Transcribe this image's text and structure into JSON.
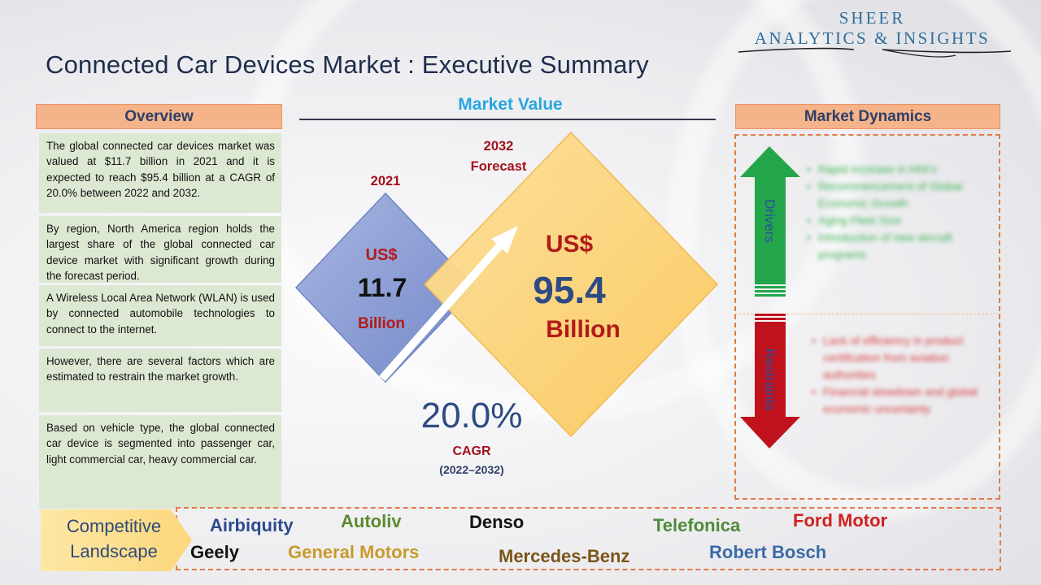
{
  "header": {
    "title": "Connected Car Devices Market : Executive Summary",
    "logo_line1": "SHEER",
    "logo_line2": "ANALYTICS & INSIGHTS"
  },
  "overview": {
    "title": "Overview",
    "paragraphs": [
      "The global connected car devices market was valued at $11.7 billion in 2021 and it is expected to reach $95.4 billion at a CAGR of 20.0% between 2022 and 2032.",
      "By region, North America region holds the largest share of the global connected car device market with significant growth during the forecast period.",
      "A Wireless Local Area Network (WLAN) is used by connected automobile technologies to connect to the internet.",
      "However, there are several factors which are estimated to restrain the market growth.",
      "Based on vehicle type, the global connected car device is segmented into passenger car, light commercial car, heavy commercial car."
    ]
  },
  "market_value": {
    "title": "Market Value",
    "start": {
      "year": "2021",
      "currency": "US$",
      "value": "11.7",
      "unit": "Billion"
    },
    "end": {
      "year_line1": "2032",
      "year_line2": "Forecast",
      "currency": "US$",
      "value": "95.4",
      "unit": "Billion"
    },
    "cagr": {
      "value": "20.0%",
      "label": "CAGR",
      "period": "(2022–2032)"
    }
  },
  "market_dynamics": {
    "title": "Market Dynamics",
    "drivers_label": "Drivers",
    "restraints_label": "Restraints",
    "drivers": [
      "Rapid increase in HNI's",
      "Recommencement of Global Economic Growth",
      "Aging Fleet Size",
      "Introduction of new aircraft programs"
    ],
    "restraints": [
      "Lack of efficiency in product certification from aviation authorities",
      "Financial slowdown and global economic uncertainty"
    ]
  },
  "competitive_landscape": {
    "label_line1": "Competitive",
    "label_line2": "Landscape",
    "companies": [
      {
        "name": "Airbiquity",
        "color": "#2e4a8c"
      },
      {
        "name": "Autoliv",
        "color": "#5a8a2e"
      },
      {
        "name": "Denso",
        "color": "#111111"
      },
      {
        "name": "Telefonica",
        "color": "#4f8a3a"
      },
      {
        "name": "Ford Motor",
        "color": "#d0201f"
      },
      {
        "name": "Geely",
        "color": "#111111"
      },
      {
        "name": "General Motors",
        "color": "#c99a2a"
      },
      {
        "name": "Mercedes-Benz",
        "color": "#7a5518"
      },
      {
        "name": "Robert Bosch",
        "color": "#3a6aa8"
      }
    ]
  },
  "colors": {
    "header_fill": "#f5b38a",
    "overview_fill": "#dde8d3",
    "diamond_small": "#8da0d6",
    "diamond_large": "#fcd27a",
    "drivers_arrow": "#23a64a",
    "restraints_arrow": "#c0121c"
  }
}
